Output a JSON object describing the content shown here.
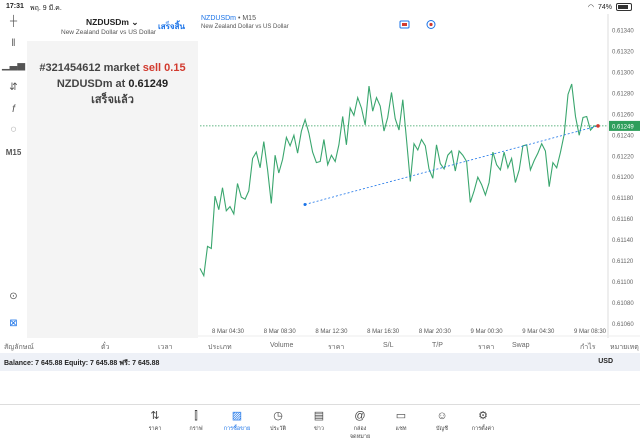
{
  "status": {
    "time": "17:31",
    "date": "พฤ. 9 มี.ค.",
    "battery": "74%"
  },
  "tools": [
    "crosshair-icon",
    "bars-icon",
    "indicators-icon",
    "objects-icon",
    "function-icon",
    "shapes-icon"
  ],
  "timeframe": "M15",
  "panel": {
    "symbol": "NZDUSDm",
    "description": "New Zealand Dollar vs US Dollar",
    "done_label": "เสร็จสิ้น",
    "ticket_line1": "#321454612 market",
    "ticket_side": "sell 0.15",
    "ticket_line2": "NZDUSDm at",
    "ticket_price": "0.61249",
    "ticket_status": "เสร็จแล้ว"
  },
  "chart": {
    "symbol": "NZDUSDm",
    "timeframe": "• M15",
    "description": "New Zealand Dollar vs US Dollar",
    "current_price": "0.61249",
    "colors": {
      "line": "#3aa66e",
      "price_line": "#2e9e5b",
      "trend_line": "#1a73e8",
      "badge": "#2e9e5b"
    }
  },
  "chart_data": {
    "type": "line",
    "ylim": [
      0.61058,
      0.61352
    ],
    "ytick_labels": [
      "0.61340",
      "0.61320",
      "0.61300",
      "0.61280",
      "0.61260",
      "0.61240",
      "0.61220",
      "0.61200",
      "0.61180",
      "0.61160",
      "0.61140",
      "0.61120",
      "0.61100",
      "0.61080",
      "0.61060"
    ],
    "xtick_labels": [
      "8 Mar 04:30",
      "8 Mar 08:30",
      "8 Mar 12:30",
      "8 Mar 16:30",
      "8 Mar 20:30",
      "9 Mar 00:30",
      "9 Mar 04:30",
      "9 Mar 08:30"
    ],
    "series": [
      {
        "values": [
          0.61113,
          0.61106,
          0.61134,
          0.61132,
          0.61182,
          0.61169,
          0.6119,
          0.61168,
          0.61172,
          0.61165,
          0.61194,
          0.61181,
          0.61179,
          0.61187,
          0.61218,
          0.61224,
          0.61209,
          0.61234,
          0.61207,
          0.61175,
          0.61221,
          0.61204,
          0.61217,
          0.61238,
          0.6123,
          0.6124,
          0.61223,
          0.61244,
          0.61255,
          0.61242,
          0.61224,
          0.61214,
          0.61215,
          0.61236,
          0.61212,
          0.61221,
          0.61215,
          0.61231,
          0.61258,
          0.61231,
          0.61266,
          0.61259,
          0.61276,
          0.61266,
          0.6125,
          0.61287,
          0.61263,
          0.61276,
          0.61268,
          0.61244,
          0.61257,
          0.61281,
          0.61256,
          0.61245,
          0.61274,
          0.61236,
          0.61196,
          0.61232,
          0.61226,
          0.61236,
          0.6123,
          0.61208,
          0.61199,
          0.61231,
          0.61213,
          0.61208,
          0.61221,
          0.61225,
          0.61206,
          0.61225,
          0.61221,
          0.61215,
          0.61176,
          0.61187,
          0.612,
          0.61193,
          0.61183,
          0.61195,
          0.61224,
          0.61212,
          0.61207,
          0.61224,
          0.61209,
          0.61218,
          0.61195,
          0.61207,
          0.6123,
          0.61231,
          0.61207,
          0.61216,
          0.61223,
          0.61232,
          0.61225,
          0.61191,
          0.61214,
          0.61209,
          0.61224,
          0.61241,
          0.61279,
          0.61289,
          0.61258,
          0.6124,
          0.61257,
          0.61258,
          0.61245,
          0.61249,
          0.61249
        ]
      }
    ],
    "trend_line": {
      "from": {
        "x": "8 Mar 08:30",
        "y": 0.61174
      },
      "to": {
        "x": "9 Mar 08:30",
        "y": 0.61249
      }
    }
  },
  "columns": {
    "symbol": "สัญลักษณ์",
    "ticket": "ตั๋ว",
    "time": "เวลา",
    "type": "ประเภท",
    "volume": "Volume",
    "price": "ราคา",
    "sl": "S/L",
    "tp": "T/P",
    "price2": "ราคา",
    "swap": "Swap",
    "profit": "กำไร",
    "comment": "หมายเหตุ"
  },
  "balance": {
    "text": "Balance: 7 645.88 Equity: 7 645.88 ฟรี: 7 645.88",
    "currency": "USD"
  },
  "tabs": [
    {
      "label": "ราคา",
      "icon": "quotes-icon"
    },
    {
      "label": "กราฟ",
      "icon": "chart-icon"
    },
    {
      "label": "การซื้อขาย",
      "icon": "trade-icon",
      "active": true
    },
    {
      "label": "ประวัติ",
      "icon": "history-icon"
    },
    {
      "label": "ข่าว",
      "icon": "news-icon"
    },
    {
      "label": "กล่องจดหมาย",
      "icon": "mailbox-icon"
    },
    {
      "label": "แชท",
      "icon": "chat-icon"
    },
    {
      "label": "บัญชี",
      "icon": "account-icon"
    },
    {
      "label": "การตั้งค่า",
      "icon": "settings-icon"
    }
  ]
}
